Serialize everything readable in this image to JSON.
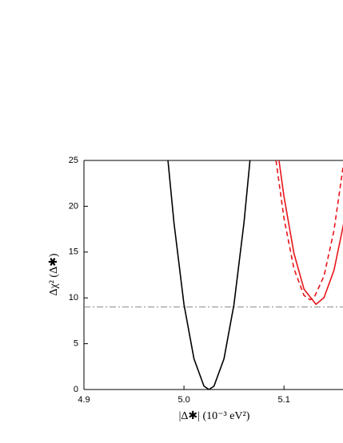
{
  "chart_data": {
    "type": "line",
    "x_label": "|Δ✱| (10⁻³ eV²)",
    "y_label": "Δχ² (Δ✱)",
    "xlim": [
      4.9,
      5.159
    ],
    "ylim": [
      0,
      25
    ],
    "xticks": [
      4.9,
      {
        "value": 5,
        "label": "5.0"
      },
      5.1
    ],
    "yticks": [
      0,
      5,
      10,
      15,
      20,
      25
    ],
    "hline": {
      "value": 9,
      "color": "#888888",
      "style": "dashdot"
    },
    "series": [
      {
        "color": "#000000",
        "style": "solid",
        "x": [
          4.984,
          4.99,
          5.0,
          5.01,
          5.02,
          5.025,
          5.03,
          5.04,
          5.05,
          5.06,
          5.066
        ],
        "values": [
          25.0,
          18.2,
          9.29,
          3.35,
          0.37,
          0,
          0.37,
          3.35,
          9.29,
          18.2,
          25.0
        ]
      },
      {
        "color": "#e8151b",
        "style": "solid",
        "x": [
          5.095,
          5.1,
          5.11,
          5.12,
          5.132,
          5.14,
          5.15,
          5.16
        ],
        "values": [
          25.0,
          21.05,
          14.85,
          10.95,
          9.3,
          10.03,
          13.02,
          18.29
        ]
      },
      {
        "color": "#e8151b",
        "style": "dashed",
        "x": [
          5.092,
          5.1,
          5.11,
          5.12,
          5.126,
          5.13,
          5.14,
          5.15,
          5.16
        ],
        "values": [
          25.0,
          18.69,
          13.17,
          10.27,
          9.8,
          10.01,
          12.38,
          17.37,
          25.0
        ]
      }
    ]
  }
}
